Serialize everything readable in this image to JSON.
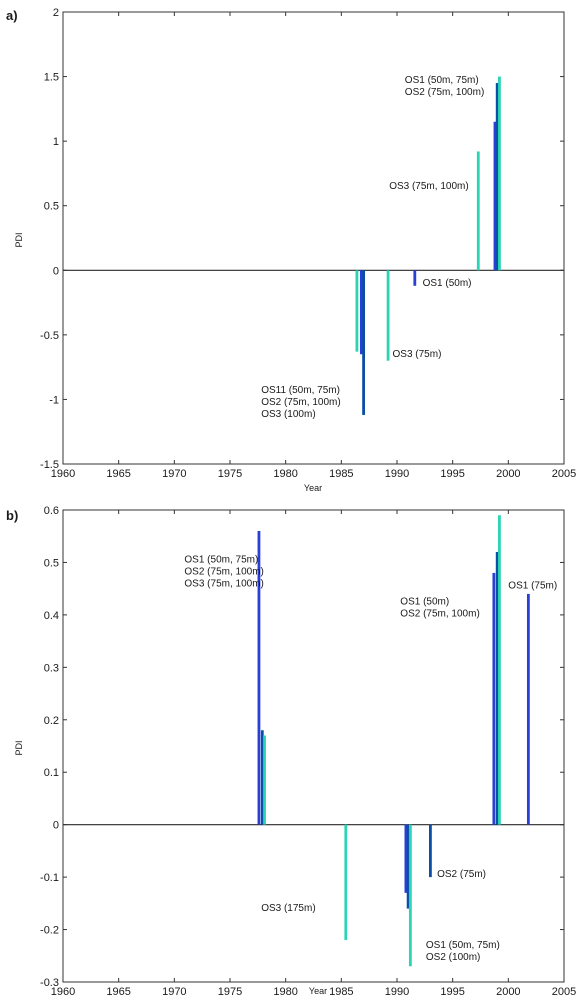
{
  "chart_data": [
    {
      "type": "bar",
      "panel_label": "a)",
      "xlabel": "Year",
      "ylabel": "PDI",
      "xlim": [
        1960,
        2005
      ],
      "ylim": [
        -1.5,
        2
      ],
      "xticks": [
        1960,
        1965,
        1970,
        1975,
        1980,
        1985,
        1990,
        1995,
        2000,
        2005
      ],
      "yticks": [
        -1.5,
        -1,
        -0.5,
        0,
        0.5,
        1,
        1.5,
        2
      ],
      "ytick_labels": [
        "-1.5",
        "-1",
        "-0.5",
        "0",
        "0.5",
        "1",
        "1.5",
        "2"
      ],
      "grid": false,
      "colors": {
        "OS1": "#2a3fd6",
        "OS2": "#0a4ea8",
        "OS3": "#2ad4b4"
      },
      "series": [
        {
          "name": "OS1",
          "color": "#2a3fd6",
          "x": [
            1986.8,
            1991.6,
            1998.8
          ],
          "values": [
            -0.65,
            -0.12,
            1.15
          ]
        },
        {
          "name": "OS2",
          "color": "#0a4ea8",
          "x": [
            1987.0,
            1999.0
          ],
          "values": [
            -1.12,
            1.45
          ]
        },
        {
          "name": "OS3",
          "color": "#2ad4b4",
          "x": [
            1986.4,
            1989.2,
            1997.3,
            1999.2
          ],
          "values": [
            -0.63,
            -0.7,
            0.92,
            1.5
          ]
        }
      ],
      "annotations": [
        {
          "lines": [
            "OS1 (50m, 75m)",
            "OS2 (75m, 100m)"
          ],
          "x": 1990.7,
          "y": 1.45
        },
        {
          "lines": [
            "OS3 (75m, 100m)"
          ],
          "x": 1989.3,
          "y": 0.63
        },
        {
          "lines": [
            "OS1 (50m)"
          ],
          "x": 1992.3,
          "y": -0.12
        },
        {
          "lines": [
            "OS3 (75m)"
          ],
          "x": 1989.6,
          "y": -0.67
        },
        {
          "lines": [
            "OS11 (50m, 75m)",
            "OS2 (75m, 100m)",
            "OS3 (100m)"
          ],
          "x": 1977.8,
          "y": -0.95
        }
      ]
    },
    {
      "type": "bar",
      "panel_label": "b)",
      "xlabel": "Year",
      "ylabel": "PDI",
      "xlim": [
        1960,
        2005
      ],
      "ylim": [
        -0.3,
        0.6
      ],
      "xticks": [
        1960,
        1965,
        1970,
        1975,
        1980,
        1985,
        1990,
        1995,
        2000,
        2005
      ],
      "yticks": [
        -0.3,
        -0.2,
        -0.1,
        0,
        0.1,
        0.2,
        0.3,
        0.4,
        0.5,
        0.6
      ],
      "ytick_labels": [
        "-0.3",
        "-0.2",
        "-0.1",
        "0",
        "0.1",
        "0.2",
        "0.3",
        "0.4",
        "0.5",
        "0.6"
      ],
      "grid": false,
      "colors": {
        "OS1": "#2a3fd6",
        "OS2": "#0a4ea8",
        "OS3": "#2ad4b4"
      },
      "series": [
        {
          "name": "OS1",
          "color": "#2a3fd6",
          "x": [
            1977.6,
            1990.8,
            1998.7,
            2001.8
          ],
          "values": [
            0.56,
            -0.13,
            0.48,
            0.44
          ]
        },
        {
          "name": "OS2",
          "color": "#0a4ea8",
          "x": [
            1977.9,
            1991.0,
            1993.0,
            1999.0
          ],
          "values": [
            0.18,
            -0.16,
            -0.1,
            0.52
          ]
        },
        {
          "name": "OS3",
          "color": "#2ad4b4",
          "x": [
            1978.1,
            1985.4,
            1991.2,
            1999.2
          ],
          "values": [
            0.17,
            -0.22,
            -0.27,
            0.59
          ]
        }
      ],
      "annotations": [
        {
          "lines": [
            "OS1 (50m, 75m)",
            "OS2 (75m, 100m)",
            "OS3 (75m, 100m)"
          ],
          "x": 1970.9,
          "y": 0.5
        },
        {
          "lines": [
            "OS1 (50m)",
            "OS2 (75m, 100m)"
          ],
          "x": 1990.3,
          "y": 0.42
        },
        {
          "lines": [
            "OS1 (75m)"
          ],
          "x": 2000.0,
          "y": 0.45
        },
        {
          "lines": [
            "OS2 (75m)"
          ],
          "x": 1993.6,
          "y": -0.1
        },
        {
          "lines": [
            "OS3 (175m)"
          ],
          "x": 1977.8,
          "y": -0.165
        },
        {
          "lines": [
            "OS1 (50m, 75m)",
            "OS2 (100m)"
          ],
          "x": 1992.6,
          "y": -0.235
        }
      ]
    }
  ]
}
